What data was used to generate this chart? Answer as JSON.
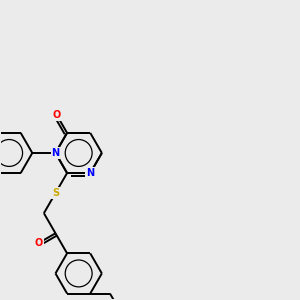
{
  "background_color": "#ebebeb",
  "bond_color": "#000000",
  "atom_colors": {
    "N": "#0000ff",
    "O": "#ff0000",
    "S": "#ccaa00"
  },
  "figsize": [
    3.0,
    3.0
  ],
  "dpi": 100
}
